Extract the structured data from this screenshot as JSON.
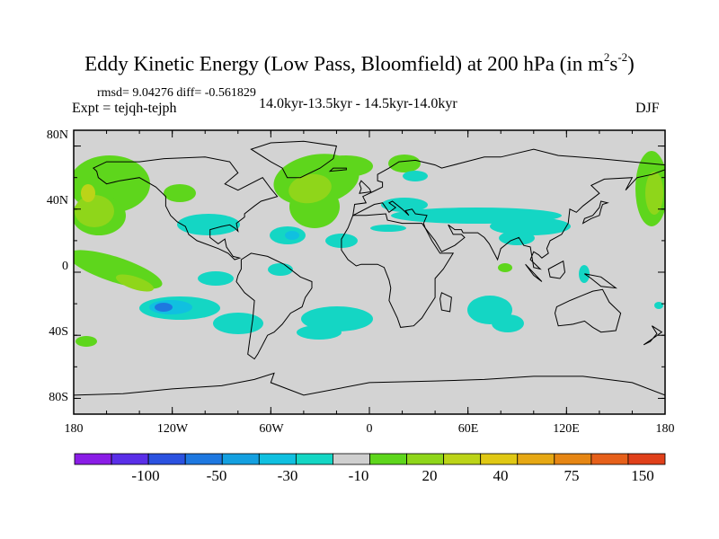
{
  "title": {
    "main": "Eddy Kinetic Energy (Low Pass, Bloomfield) at 200 hPa (in m",
    "sup1": "2",
    "mid": "s",
    "sup2": "-2",
    "end": ")"
  },
  "stats_line": "rmsd= 9.04276 diff= -0.561829",
  "expt_line": "Expt = tejqh-tejph",
  "period_line": "14.0kyr-13.5kyr - 14.5kyr-14.0kyr",
  "season": "DJF",
  "axes": {
    "y_ticks": [
      "80N",
      "40N",
      "0",
      "40S",
      "80S"
    ],
    "x_ticks": [
      "180",
      "120W",
      "60W",
      "0",
      "60E",
      "120E",
      "180"
    ]
  },
  "colorbar": {
    "colors": [
      "#8a1de6",
      "#5a2fe8",
      "#2b52e0",
      "#1e78e0",
      "#14a0e0",
      "#10c0e0",
      "#14d6c4",
      "#cfcfcf",
      "#5ed61c",
      "#8fd61a",
      "#bcd418",
      "#e0c814",
      "#e6a814",
      "#e68614",
      "#e6601a",
      "#e0401a"
    ],
    "labels": [
      "-100",
      "-50",
      "-30",
      "-10",
      "20",
      "40",
      "75",
      "150"
    ]
  },
  "map": {
    "background": "#d3d3d3",
    "color_green": "#5ed61c",
    "color_lightgreen": "#8fd61a",
    "color_yellowgreen": "#bcd418",
    "color_cyan": "#14d6c4",
    "color_teal": "#10c0e0",
    "color_blue": "#1e78e0"
  }
}
